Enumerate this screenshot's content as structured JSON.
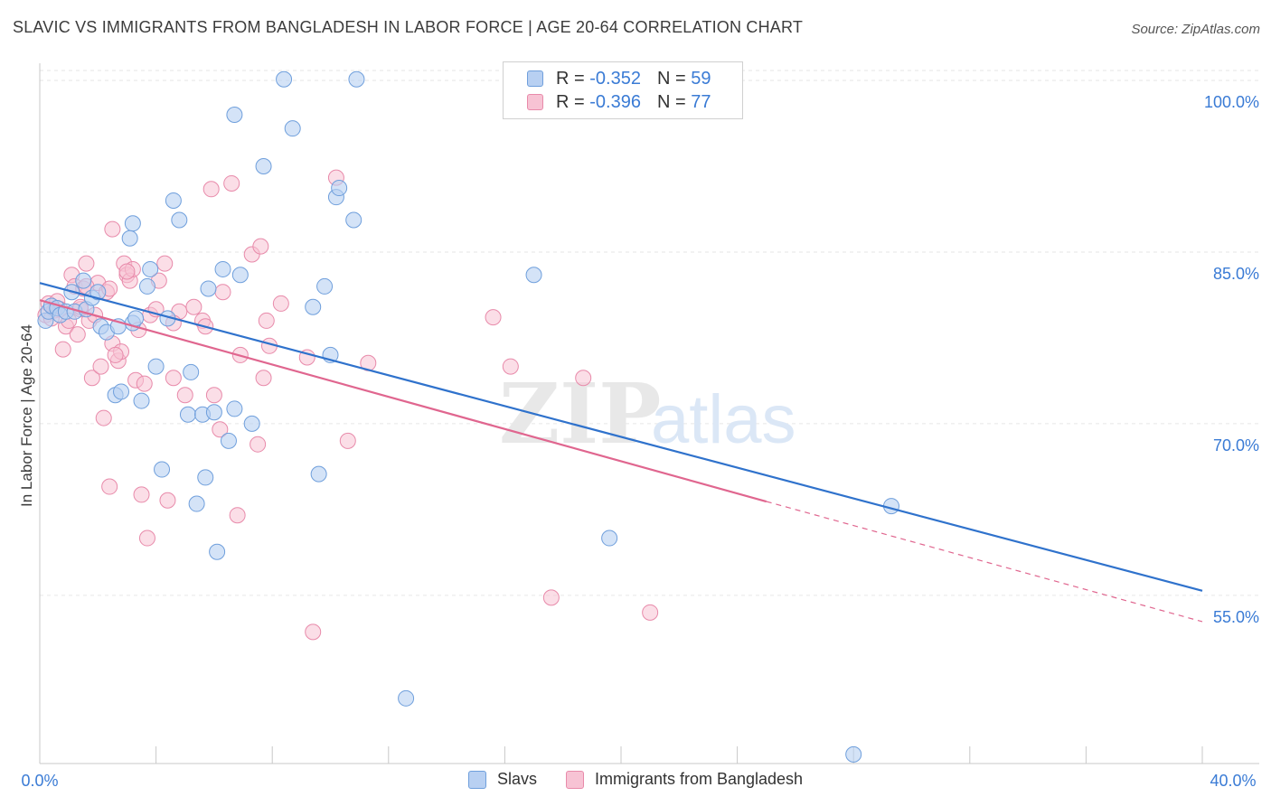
{
  "header": {
    "title": "SLAVIC VS IMMIGRANTS FROM BANGLADESH IN LABOR FORCE | AGE 20-64 CORRELATION CHART",
    "source": "Source: ZipAtlas.com"
  },
  "legend": {
    "rows": [
      {
        "r_label": "R =",
        "r_value": "-0.352",
        "n_label": "N =",
        "n_value": "59"
      },
      {
        "r_label": "R =",
        "r_value": "-0.396",
        "n_label": "N =",
        "n_value": "77"
      }
    ]
  },
  "watermark": {
    "part1": "ZIP",
    "part2": "atlas"
  },
  "colors": {
    "slavs_fill": "#b8d0f2",
    "slavs_stroke": "#6f9fdc",
    "slavs_line": "#2f72cc",
    "bangladesh_fill": "#f7c3d4",
    "bangladesh_stroke": "#e88aaa",
    "bangladesh_line": "#e0668f",
    "axis_text": "#3a7bd5",
    "grid": "#e6e6e6"
  },
  "chart_data": {
    "type": "scatter",
    "title": "SLAVIC VS IMMIGRANTS FROM BANGLADESH IN LABOR FORCE | AGE 20-64 CORRELATION CHART",
    "xlabel": "",
    "ylabel": "In Labor Force | Age 20-64",
    "xlim": [
      0,
      40
    ],
    "ylim": [
      40.3,
      101.5
    ],
    "x_tick_labels": [
      "0.0%",
      "40.0%"
    ],
    "y_ticks": [
      55,
      70,
      85,
      100
    ],
    "y_tick_labels": [
      "55.0%",
      "70.0%",
      "85.0%",
      "100.0%"
    ],
    "grid": true,
    "legend_position": "top-center",
    "series": [
      {
        "name": "Slavs",
        "r": -0.352,
        "n": 59,
        "trend": {
          "x": [
            0,
            40
          ],
          "y": [
            82.3,
            55.4
          ]
        },
        "points": [
          [
            0.2,
            79.0
          ],
          [
            0.3,
            79.8
          ],
          [
            0.4,
            80.3
          ],
          [
            0.6,
            80.1
          ],
          [
            0.7,
            79.5
          ],
          [
            0.9,
            79.8
          ],
          [
            1.1,
            81.5
          ],
          [
            1.2,
            79.8
          ],
          [
            1.5,
            82.5
          ],
          [
            1.6,
            80.0
          ],
          [
            1.8,
            81.0
          ],
          [
            2.0,
            81.5
          ],
          [
            2.1,
            78.5
          ],
          [
            2.3,
            78.0
          ],
          [
            2.7,
            78.5
          ],
          [
            3.2,
            78.8
          ],
          [
            2.6,
            72.5
          ],
          [
            2.8,
            72.8
          ],
          [
            3.2,
            87.5
          ],
          [
            3.1,
            86.2
          ],
          [
            3.5,
            72.0
          ],
          [
            3.7,
            82.0
          ],
          [
            3.8,
            83.5
          ],
          [
            4.0,
            75.0
          ],
          [
            4.2,
            66.0
          ],
          [
            4.4,
            79.2
          ],
          [
            4.6,
            89.5
          ],
          [
            4.8,
            87.8
          ],
          [
            5.1,
            70.8
          ],
          [
            5.2,
            74.5
          ],
          [
            5.4,
            63.0
          ],
          [
            5.6,
            70.8
          ],
          [
            5.7,
            65.3
          ],
          [
            5.8,
            81.8
          ],
          [
            6.0,
            71.0
          ],
          [
            6.1,
            58.8
          ],
          [
            6.3,
            83.5
          ],
          [
            6.5,
            68.5
          ],
          [
            6.7,
            71.3
          ],
          [
            6.7,
            97.0
          ],
          [
            6.9,
            83.0
          ],
          [
            7.3,
            70.0
          ],
          [
            7.7,
            92.5
          ],
          [
            8.4,
            100.1
          ],
          [
            8.7,
            95.8
          ],
          [
            9.4,
            80.2
          ],
          [
            9.6,
            65.6
          ],
          [
            9.8,
            82.0
          ],
          [
            10.0,
            76.0
          ],
          [
            10.2,
            89.8
          ],
          [
            10.3,
            90.6
          ],
          [
            10.8,
            87.8
          ],
          [
            10.9,
            100.1
          ],
          [
            12.6,
            46.0
          ],
          [
            17.0,
            83.0
          ],
          [
            19.6,
            60.0
          ],
          [
            29.3,
            62.8
          ],
          [
            28.0,
            41.1
          ],
          [
            3.3,
            79.2
          ]
        ]
      },
      {
        "name": "Immigrants from Bangladesh",
        "r": -0.396,
        "n": 77,
        "trend": {
          "x": [
            0,
            25.0
          ],
          "y": [
            80.8,
            63.2
          ]
        },
        "trend_dashed": {
          "x": [
            25.0,
            40
          ],
          "y": [
            63.2,
            52.7
          ]
        },
        "points": [
          [
            0.2,
            79.5
          ],
          [
            0.3,
            80.5
          ],
          [
            0.5,
            79.9
          ],
          [
            0.6,
            80.7
          ],
          [
            0.7,
            80.0
          ],
          [
            0.8,
            76.5
          ],
          [
            0.9,
            78.5
          ],
          [
            1.0,
            79.0
          ],
          [
            1.1,
            83.0
          ],
          [
            1.2,
            82.0
          ],
          [
            1.3,
            77.8
          ],
          [
            1.4,
            80.0
          ],
          [
            1.5,
            81.8
          ],
          [
            1.6,
            84.0
          ],
          [
            1.7,
            79.0
          ],
          [
            1.8,
            74.0
          ],
          [
            1.9,
            79.5
          ],
          [
            2.0,
            82.3
          ],
          [
            2.1,
            75.0
          ],
          [
            2.2,
            70.5
          ],
          [
            2.3,
            81.5
          ],
          [
            2.4,
            64.5
          ],
          [
            2.5,
            77.0
          ],
          [
            2.5,
            87.0
          ],
          [
            2.7,
            75.5
          ],
          [
            2.8,
            76.3
          ],
          [
            2.9,
            84.0
          ],
          [
            3.0,
            83.0
          ],
          [
            3.1,
            82.5
          ],
          [
            3.2,
            83.5
          ],
          [
            3.3,
            73.8
          ],
          [
            3.4,
            78.2
          ],
          [
            3.5,
            63.8
          ],
          [
            3.6,
            73.5
          ],
          [
            3.7,
            60.0
          ],
          [
            3.8,
            79.5
          ],
          [
            4.0,
            80.0
          ],
          [
            4.1,
            82.5
          ],
          [
            4.3,
            84.0
          ],
          [
            4.4,
            63.3
          ],
          [
            4.6,
            74.0
          ],
          [
            4.8,
            79.8
          ],
          [
            5.0,
            72.5
          ],
          [
            5.3,
            80.2
          ],
          [
            5.6,
            79.0
          ],
          [
            5.7,
            78.5
          ],
          [
            5.9,
            90.5
          ],
          [
            6.0,
            72.5
          ],
          [
            6.2,
            69.5
          ],
          [
            6.3,
            81.5
          ],
          [
            6.6,
            91.0
          ],
          [
            6.8,
            62.0
          ],
          [
            6.9,
            76.0
          ],
          [
            7.3,
            84.8
          ],
          [
            7.5,
            68.2
          ],
          [
            7.6,
            85.5
          ],
          [
            7.7,
            74.0
          ],
          [
            7.8,
            79.0
          ],
          [
            7.9,
            76.8
          ],
          [
            8.3,
            80.5
          ],
          [
            9.2,
            75.8
          ],
          [
            9.4,
            51.8
          ],
          [
            10.2,
            91.5
          ],
          [
            10.6,
            68.5
          ],
          [
            11.3,
            75.3
          ],
          [
            15.6,
            79.3
          ],
          [
            16.2,
            75.0
          ],
          [
            17.6,
            54.8
          ],
          [
            18.7,
            74.0
          ],
          [
            21.0,
            53.5
          ],
          [
            1.4,
            80.2
          ],
          [
            0.4,
            79.2
          ],
          [
            2.6,
            76.0
          ],
          [
            3.0,
            83.3
          ],
          [
            1.6,
            82.0
          ],
          [
            2.4,
            81.8
          ],
          [
            4.6,
            78.8
          ]
        ]
      }
    ]
  }
}
